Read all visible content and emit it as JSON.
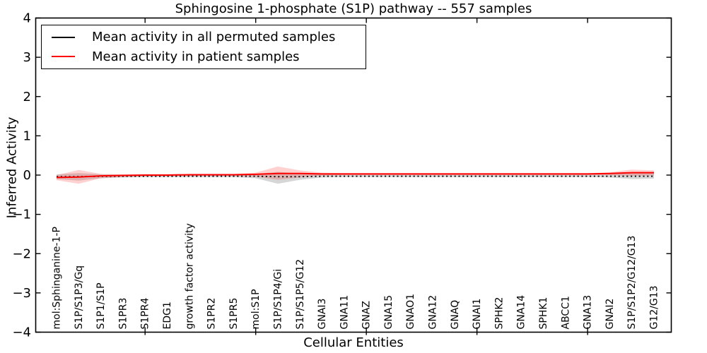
{
  "chart_data": {
    "type": "line",
    "title": "Sphingosine 1-phosphate (S1P) pathway -- 557 samples",
    "xlabel": "Cellular Entities",
    "ylabel": "Inferred Activity",
    "ylim": [
      -4,
      4
    ],
    "ytick_values": [
      4,
      3,
      2,
      1,
      0,
      -1,
      -2,
      -3,
      -4
    ],
    "ytick_labels": [
      "4",
      "3",
      "2",
      "1",
      "0",
      "−1",
      "−2",
      "−3",
      "−4"
    ],
    "xtick_major_indices": [
      4,
      9,
      14,
      19,
      24
    ],
    "grid": false,
    "legend_position": "upper-left",
    "categories": [
      "mol:Sphinganine-1-P",
      "S1P/S1P3/Gq",
      "S1P1/S1P",
      "S1PR3",
      "S1PR4",
      "EDG1",
      "growth factor activity",
      "S1PR2",
      "S1PR5",
      "mol:S1P",
      "S1P/S1P4/Gi",
      "S1P/S1P5/G12",
      "GNAI3",
      "GNA11",
      "GNAZ",
      "GNA15",
      "GNAO1",
      "GNA12",
      "GNAQ",
      "GNAI1",
      "SPHK2",
      "GNA14",
      "SPHK1",
      "ABCC1",
      "GNA13",
      "GNAI2",
      "S1P/S1P2/G12/G13",
      "G12/G13"
    ],
    "series": [
      {
        "name": "Mean activity in all permuted samples",
        "color": "#1a1a1a",
        "style": "dotted",
        "values": [
          -0.04,
          -0.04,
          -0.03,
          -0.03,
          -0.03,
          -0.03,
          -0.03,
          -0.03,
          -0.03,
          -0.03,
          -0.04,
          -0.04,
          -0.03,
          -0.03,
          -0.03,
          -0.03,
          -0.03,
          -0.03,
          -0.03,
          -0.03,
          -0.03,
          -0.03,
          -0.03,
          -0.03,
          -0.03,
          -0.03,
          -0.03,
          -0.03
        ],
        "band_upper": [
          0.02,
          0.05,
          0.02,
          0.01,
          0.01,
          0.01,
          0.01,
          0.01,
          0.01,
          0.03,
          0.08,
          0.04,
          0.02,
          0.01,
          0.01,
          0.01,
          0.01,
          0.01,
          0.01,
          0.01,
          0.01,
          0.01,
          0.01,
          0.01,
          0.01,
          0.03,
          0.05,
          0.05
        ],
        "band_lower": [
          -0.1,
          -0.14,
          -0.08,
          -0.06,
          -0.05,
          -0.05,
          -0.05,
          -0.05,
          -0.05,
          -0.08,
          -0.22,
          -0.12,
          -0.06,
          -0.05,
          -0.05,
          -0.05,
          -0.05,
          -0.05,
          -0.05,
          -0.05,
          -0.05,
          -0.05,
          -0.05,
          -0.05,
          -0.05,
          -0.06,
          -0.1,
          -0.09
        ],
        "band_color": "rgba(120,120,120,0.30)"
      },
      {
        "name": "Mean activity in patient samples",
        "color": "#ff0000",
        "style": "solid",
        "values": [
          -0.06,
          -0.05,
          -0.02,
          -0.01,
          0.0,
          0.0,
          0.01,
          0.01,
          0.01,
          0.02,
          0.04,
          0.04,
          0.03,
          0.03,
          0.03,
          0.03,
          0.03,
          0.03,
          0.03,
          0.03,
          0.03,
          0.03,
          0.03,
          0.03,
          0.03,
          0.04,
          0.06,
          0.06
        ],
        "band_upper": [
          0.0,
          0.13,
          0.03,
          0.02,
          0.02,
          0.02,
          0.03,
          0.03,
          0.03,
          0.06,
          0.22,
          0.12,
          0.06,
          0.05,
          0.05,
          0.05,
          0.05,
          0.05,
          0.05,
          0.05,
          0.05,
          0.05,
          0.05,
          0.05,
          0.05,
          0.07,
          0.14,
          0.12
        ],
        "band_lower": [
          -0.13,
          -0.22,
          -0.08,
          -0.05,
          -0.03,
          -0.03,
          -0.02,
          -0.02,
          -0.02,
          -0.04,
          -0.12,
          -0.06,
          -0.01,
          0.0,
          0.0,
          0.0,
          0.0,
          0.0,
          0.0,
          0.0,
          0.0,
          0.0,
          0.0,
          0.0,
          0.0,
          0.0,
          -0.02,
          -0.01
        ],
        "band_color": "rgba(255,0,0,0.18)"
      }
    ],
    "legend": {
      "entries": [
        {
          "label": "Mean activity in all permuted samples",
          "color": "#000000"
        },
        {
          "label": "Mean activity in patient samples",
          "color": "#ff0000"
        }
      ]
    }
  }
}
